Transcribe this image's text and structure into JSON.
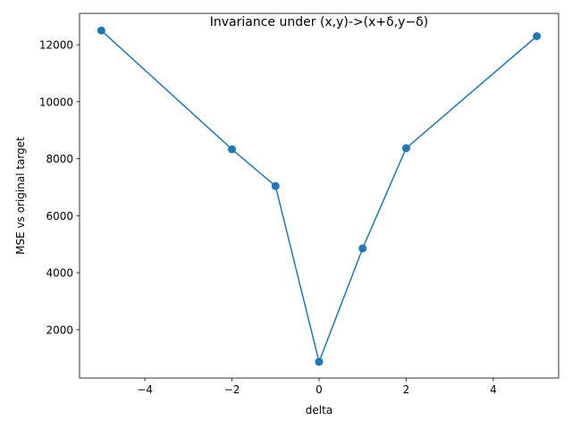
{
  "chart_data": {
    "type": "line",
    "title": "Invariance under (x,y)->(x+δ,y−δ)",
    "xlabel": "delta",
    "ylabel": "MSE vs original target",
    "xlim": [
      -5.5,
      5.5
    ],
    "ylim": [
      300,
      13100
    ],
    "x_ticks": [
      -4,
      -2,
      0,
      2,
      4
    ],
    "x_tick_labels": [
      "−4",
      "−2",
      "0",
      "2",
      "4"
    ],
    "y_ticks": [
      2000,
      4000,
      6000,
      8000,
      10000,
      12000
    ],
    "y_tick_labels": [
      "2000",
      "4000",
      "6000",
      "8000",
      "10000",
      "12000"
    ],
    "grid": false,
    "legend": "none",
    "marker": "circle",
    "series": [
      {
        "color": "#1f77b4",
        "x": [
          -5,
          -2,
          -1,
          0,
          1,
          2,
          5
        ],
        "y": [
          12500,
          8330,
          7040,
          870,
          4850,
          8370,
          12300
        ]
      }
    ]
  }
}
